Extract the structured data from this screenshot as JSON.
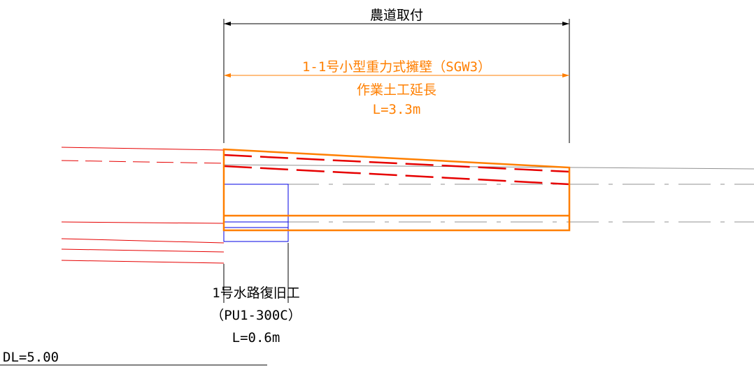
{
  "top_dimension": {
    "label": "農道取付"
  },
  "orange_dimension": {
    "title": "1-1号小型重力式擁壁（SGW3）",
    "subtitle": "作業土工延長",
    "length": "L=3.3m"
  },
  "culvert_note": {
    "line1": "1号水路復旧工",
    "line2": "（PU1-300C）",
    "line3": "L=0.6m"
  },
  "datum": {
    "label": "DL=5.00"
  },
  "colors": {
    "orange": "#ff7f00",
    "red": "#e60000",
    "blue": "#0000e6",
    "black": "#000000",
    "gray": "#909090"
  }
}
